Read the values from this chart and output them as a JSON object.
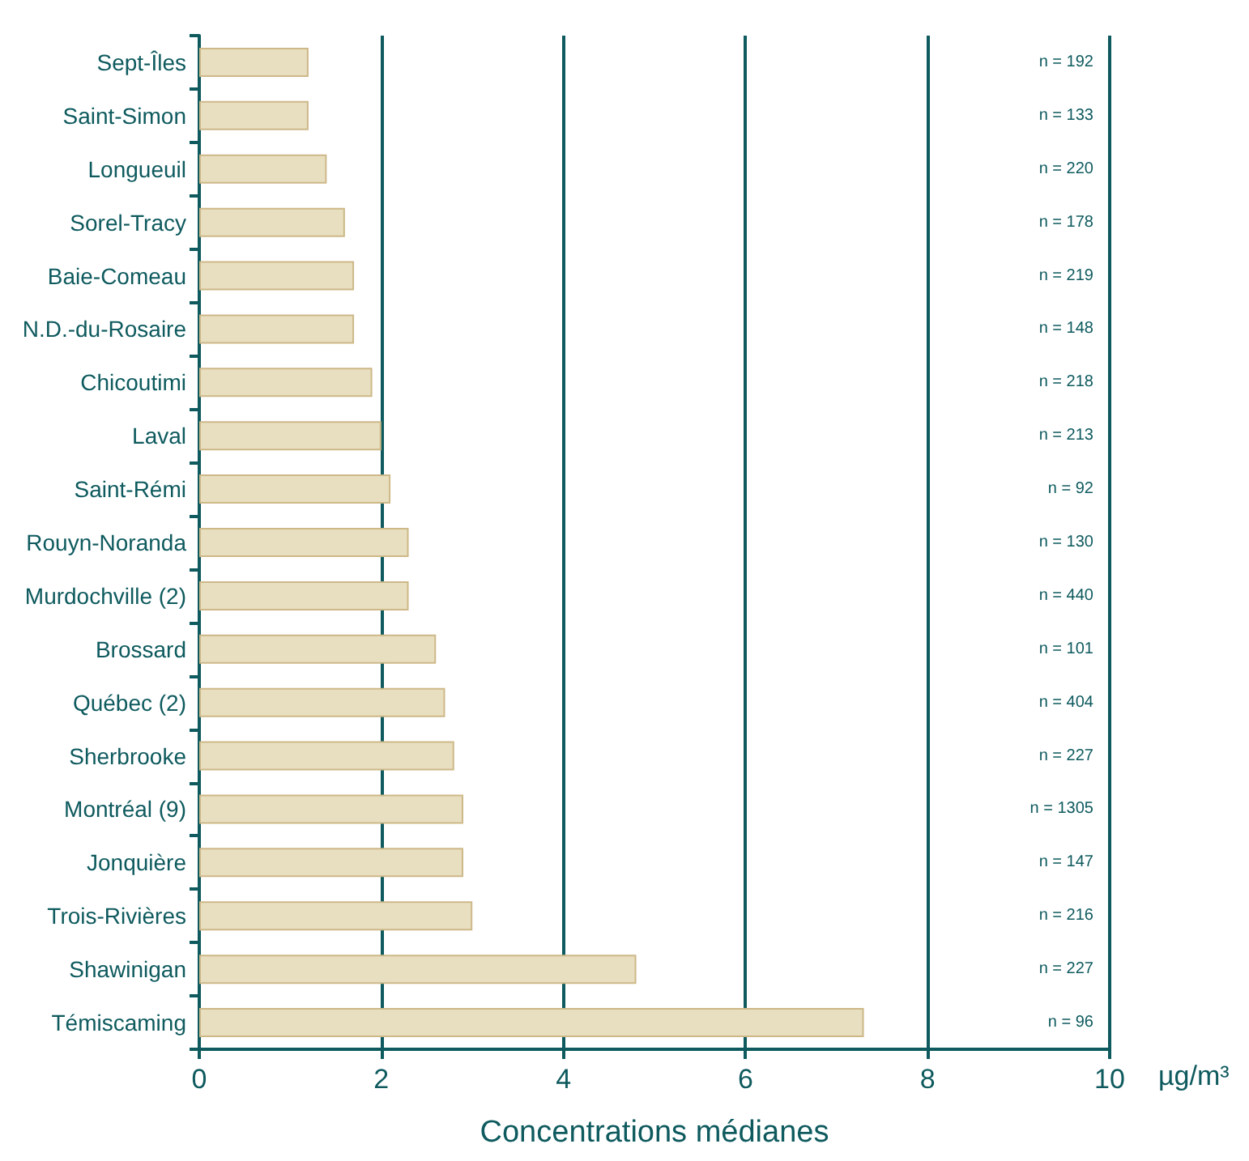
{
  "chart_data": {
    "type": "bar",
    "orientation": "horizontal",
    "xlabel": "Concentrations médianes",
    "categories": [
      "Sept-Îles",
      "Saint-Simon",
      "Longueuil",
      "Sorel-Tracy",
      "Baie-Comeau",
      "N.D.-du-Rosaire",
      "Chicoutimi",
      "Laval",
      "Saint-Rémi",
      "Rouyn-Noranda",
      "Murdochville (2)",
      "Brossard",
      "Québec (2)",
      "Sherbrooke",
      "Montréal (9)",
      "Jonquière",
      "Trois-Rivières",
      "Shawinigan",
      "Témiscaming"
    ],
    "values": [
      1.2,
      1.2,
      1.4,
      1.6,
      1.7,
      1.7,
      1.9,
      2.0,
      2.1,
      2.3,
      2.3,
      2.6,
      2.7,
      2.8,
      2.9,
      2.9,
      3.0,
      4.8,
      7.3
    ],
    "color": "#e8dfc0",
    "xlim": [
      0,
      10
    ],
    "xticks": [
      0,
      2,
      4,
      6,
      8,
      10
    ],
    "grid": "x",
    "annotations": [
      "µg/m³",
      "n = 192",
      "n = 133",
      "n = 220",
      "n = 178",
      "n = 219",
      "n = 148",
      "n = 218",
      "n = 213",
      "n = 92",
      "n = 130",
      "n = 440",
      "n = 101",
      "n = 404",
      "n = 227",
      "n = 1305",
      "n = 147",
      "n = 216",
      "n = 227",
      "n = 96"
    ]
  }
}
